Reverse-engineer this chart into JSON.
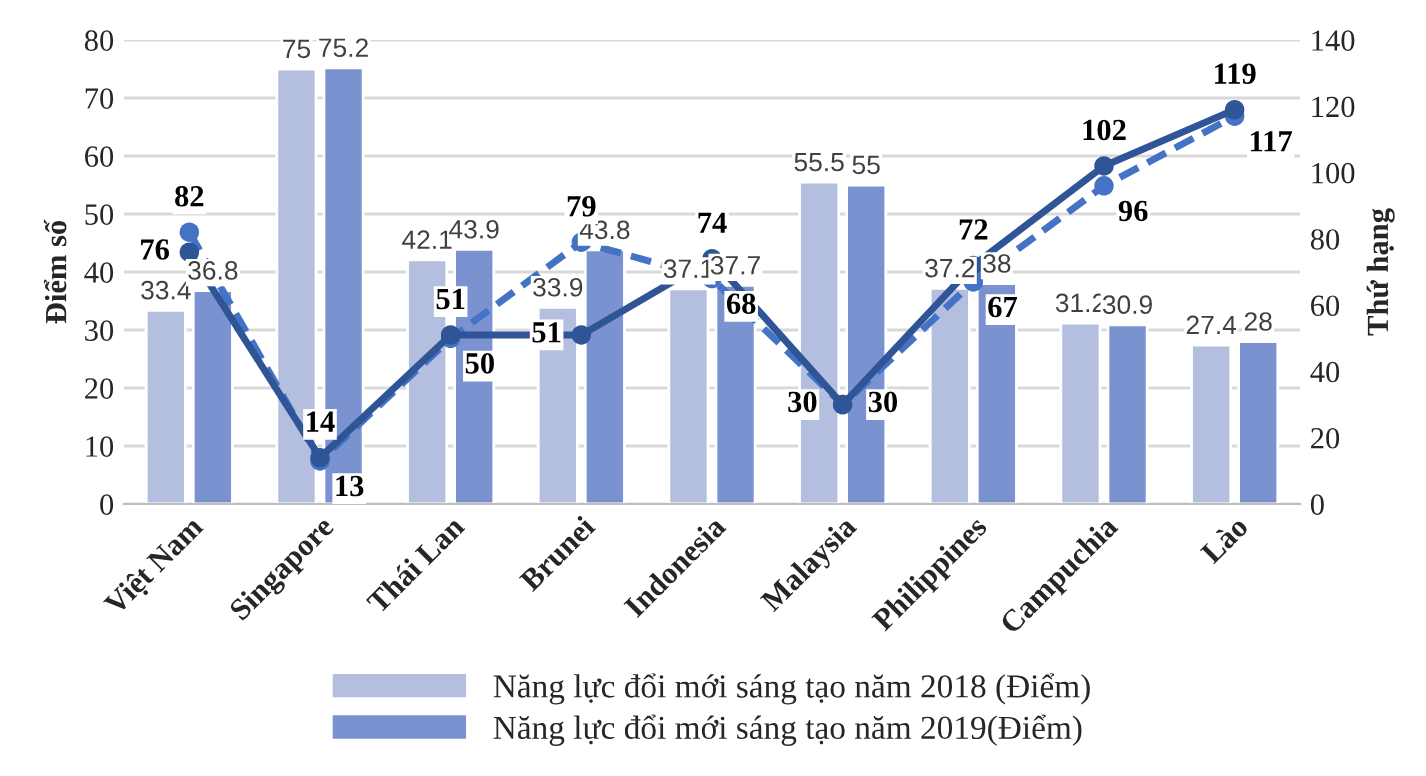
{
  "chart_data": {
    "type": "bar",
    "ylabel": "Điểm số",
    "y2label": "Thứ hạng",
    "categories": [
      "Việt Nam",
      "Singapore",
      "Thái Lan",
      "Brunei",
      "Indonesia",
      "Malaysia",
      "Philippines",
      "Campuchia",
      "Lào"
    ],
    "series": [
      {
        "name": "Năng lực đổi mới sáng tạo năm 2018 (Điểm)",
        "color": "#b4bfe0",
        "values": [
          33.4,
          75,
          42.1,
          33.9,
          37.1,
          55.5,
          37.2,
          31.2,
          27.4
        ]
      },
      {
        "name": "Năng lực đổi mới sáng tạo năm 2019(Điểm)",
        "color": "#7a93d0",
        "values": [
          36.8,
          75.2,
          43.9,
          43.8,
          37.7,
          55,
          38,
          30.9,
          28
        ]
      },
      {
        "type": "line",
        "axis": "y2",
        "color": "#4472c4",
        "line_style": "dashed",
        "values": [
          82,
          13,
          50,
          79,
          68,
          30,
          67,
          96,
          117
        ]
      },
      {
        "type": "line",
        "axis": "y2",
        "color": "#2f5597",
        "line_style": "solid",
        "values": [
          76,
          14,
          51,
          51,
          74,
          30,
          72,
          102,
          119
        ]
      }
    ],
    "ylim": [
      0,
      80
    ],
    "yticks": [
      0,
      10,
      20,
      30,
      40,
      50,
      60,
      70,
      80
    ],
    "y2lim": [
      0,
      140
    ],
    "y2ticks": [
      0,
      20,
      40,
      60,
      80,
      100,
      120,
      140
    ],
    "marker": "circle",
    "grid": "y",
    "legend": "bottom",
    "data_labels": true
  }
}
